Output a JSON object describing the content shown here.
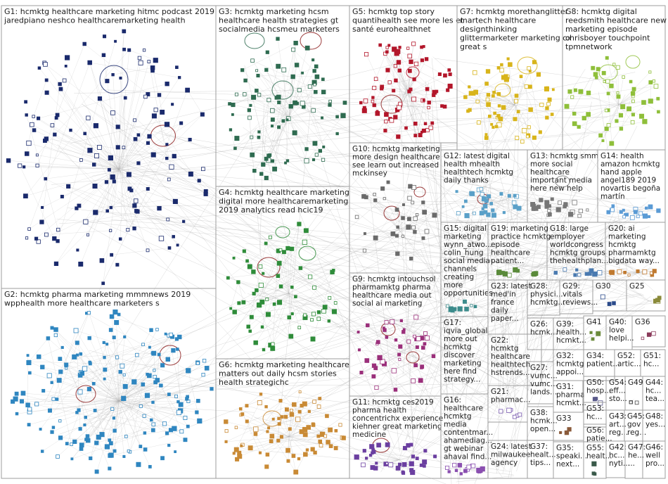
{
  "groups": [
    {
      "id": "G1",
      "lines": [
        "G1: hcmktg healthcare marketing hitmc podcast 2019",
        "jaredpiano neshco healthcaremarketing health"
      ],
      "color": "#1a2a6c"
    },
    {
      "id": "G2",
      "lines": [
        "G2: hcmktg pharma marketing mmmnews 2019",
        "wpphealth more healthcare marketers s"
      ],
      "color": "#2f86c0"
    },
    {
      "id": "G3",
      "lines": [
        "G3: hcmktg marketing hcsm",
        "healthcare health strategies gt",
        "socialmedia hcsmeu marketers"
      ],
      "color": "#2e6b50"
    },
    {
      "id": "G4",
      "lines": [
        "G4: hcmktg healthcare marketing",
        "digital more healthcaremarketing",
        "2019 analytics read hcic19"
      ],
      "color": "#2f8c3a"
    },
    {
      "id": "G5",
      "lines": [
        "G5: hcmktg top story",
        "quantihealth see more les et",
        "santé eurohealthnet"
      ],
      "color": "#b3162a"
    },
    {
      "id": "G6",
      "lines": [
        "G6: hcmktg marketing healthcare",
        "matters out daily hcsm stories",
        "health strategichc"
      ],
      "color": "#c98a35"
    },
    {
      "id": "G7",
      "lines": [
        "G7: hcmktg morethanglitter",
        "martech healthcare",
        "designthinking",
        "glittermarketer marketing cx",
        "great s"
      ],
      "color": "#d8b41a"
    },
    {
      "id": "G8",
      "lines": [
        "G8: hcmktg digital",
        "reedsmith healthcare new",
        "marketing episode",
        "chrisboyer touchpoint",
        "tpmnetwork"
      ],
      "color": "#8fbf3a"
    },
    {
      "id": "G9",
      "lines": [
        "G9: hcmktg intouchsol",
        "pharmamktg pharma",
        "healthcare media out",
        "social ai marketing"
      ],
      "color": "#9a2f7a"
    },
    {
      "id": "G10",
      "lines": [
        "G10: hcmktg marketing",
        "more design healthcare",
        "see learn out increased",
        "mckinsey"
      ],
      "color": "#6a6a6a"
    },
    {
      "id": "G11",
      "lines": [
        "G11: hcmktg ces2019",
        "pharma health",
        "concentrichx experience",
        "kiehner great marketing",
        "medicine"
      ],
      "color": "#6b3fa0"
    },
    {
      "id": "G12",
      "lines": [
        "G12: latest digital",
        "health mhealth",
        "healthtech hcmktg",
        "daily thanks"
      ],
      "color": "#5aa0c8"
    },
    {
      "id": "G13",
      "lines": [
        "G13: hcmktg smm",
        "more social",
        "healthcare",
        "important media",
        "here new help"
      ],
      "color": "#777777"
    },
    {
      "id": "G14",
      "lines": [
        "G14: health",
        "amazon hcmktg",
        "hand apple",
        "angel189 2019",
        "novartis begoña",
        "martín"
      ],
      "color": "#5b9bd5"
    },
    {
      "id": "G15",
      "lines": [
        "G15: digital",
        "marketing",
        "wynn_atwo...",
        "colin_hung",
        "social media",
        "channels",
        "creating",
        "more",
        "opportunities"
      ],
      "color": "#3d8c8c"
    },
    {
      "id": "G16",
      "lines": [
        "G16:",
        "healthcare",
        "hcmktg",
        "media",
        "contentmar...",
        "ahamediag...",
        "gt webinar",
        "ahaval find..."
      ],
      "color": "#8a4fb0"
    },
    {
      "id": "G17",
      "lines": [
        "G17:",
        "iqvia_global",
        "more out",
        "hcmktg",
        "discover",
        "marketing",
        "here find",
        "strategy..."
      ],
      "color": "#c05080"
    },
    {
      "id": "G18",
      "lines": [
        "G18: large",
        "employer",
        "worldcongress",
        "hcmktg groups",
        "thehealthplan..."
      ],
      "color": "#4a7ab0"
    },
    {
      "id": "G19",
      "lines": [
        "G19: marketing",
        "practice hcmktg",
        "episode",
        "healthcare",
        "patient..."
      ],
      "color": "#5a8a3a"
    },
    {
      "id": "G20",
      "lines": [
        "G20: ai",
        "marketing",
        "hcmktg",
        "pharmamktg",
        "bigdata way..."
      ],
      "color": "#c07a30"
    },
    {
      "id": "G21",
      "lines": [
        "G21:",
        "pharmac..."
      ],
      "color": "#7a5ab0"
    },
    {
      "id": "G22",
      "lines": [
        "G22:",
        "hcmktg",
        "healthcare",
        "healthtech",
        "hstrends..."
      ],
      "color": "#3a7ac0"
    },
    {
      "id": "G23",
      "lines": [
        "G23: latest",
        "med'in",
        "france",
        "daily",
        "paper..."
      ],
      "color": "#b04040"
    },
    {
      "id": "G24",
      "lines": [
        "G24: latest",
        "milwaukee",
        "agency"
      ],
      "color": "#4a9a7a"
    },
    {
      "id": "G25",
      "lines": [
        "G25"
      ],
      "color": "#8a8a3a"
    },
    {
      "id": "G26",
      "lines": [
        "G26:",
        "hcmk..."
      ],
      "color": "#3a5ab0"
    },
    {
      "id": "G27",
      "lines": [
        "G27:",
        "vumc...",
        "vumc...",
        "lands..."
      ],
      "color": "#b07a3a"
    },
    {
      "id": "G28",
      "lines": [
        "G28:",
        "physici...",
        "hcmktg..."
      ],
      "color": "#4a8aa0"
    },
    {
      "id": "G29",
      "lines": [
        "G29:",
        "vitals",
        "reviews..."
      ],
      "color": "#a04a8a"
    },
    {
      "id": "G30",
      "lines": [
        "G30"
      ],
      "color": "#2a4a8a"
    },
    {
      "id": "G31",
      "lines": [
        "G31:",
        "pharma",
        "hcmkt..."
      ],
      "color": "#5a7a3a"
    },
    {
      "id": "G32",
      "lines": [
        "G32:",
        "hcmktg",
        "appoi..."
      ],
      "color": "#3a8a5a"
    },
    {
      "id": "G33",
      "lines": [
        "G33"
      ],
      "color": "#8a5a3a"
    },
    {
      "id": "G34",
      "lines": [
        "G34:",
        "patient..."
      ],
      "color": "#6a3a8a"
    },
    {
      "id": "G35",
      "lines": [
        "G35:",
        "speaki...",
        "next..."
      ],
      "color": "#3a6a8a"
    },
    {
      "id": "G36",
      "lines": [
        "G36"
      ],
      "color": "#8a3a5a"
    },
    {
      "id": "G37",
      "lines": [
        "G37:",
        "healt...",
        "tips..."
      ],
      "color": "#5a8a8a"
    },
    {
      "id": "G38",
      "lines": [
        "G38:",
        "hcmk...",
        "open..."
      ],
      "color": "#3a3a8a"
    },
    {
      "id": "G39",
      "lines": [
        "G39:",
        "health...",
        "hcmkt..."
      ],
      "color": "#8a6a3a"
    },
    {
      "id": "G40",
      "lines": [
        "G40:",
        "love",
        "helpi..."
      ],
      "color": "#3a8a8a"
    },
    {
      "id": "G41",
      "lines": [
        "G41"
      ],
      "color": "#6a8a3a"
    },
    {
      "id": "G42",
      "lines": [
        "G42:",
        "hc...",
        "nyti..."
      ],
      "color": "#8a3a3a"
    },
    {
      "id": "G43",
      "lines": [
        "G43:",
        "art...",
        "reg..."
      ],
      "color": "#3a5a6a"
    },
    {
      "id": "G44",
      "lines": [
        "G44:",
        "hc...",
        "tea..."
      ],
      "color": "#6a6a3a"
    },
    {
      "id": "G45",
      "lines": [
        "G45:",
        "gov",
        "reg..."
      ],
      "color": "#3a6a3a"
    },
    {
      "id": "G46",
      "lines": [
        "G46:",
        "well",
        "pro..."
      ],
      "color": "#5a3a6a"
    },
    {
      "id": "G47",
      "lines": [
        "G47:",
        "he...",
        "..."
      ],
      "color": "#6a3a3a"
    },
    {
      "id": "G48",
      "lines": [
        "G48:",
        "yes..."
      ],
      "color": "#3a3a6a"
    },
    {
      "id": "G49",
      "lines": [
        "G49"
      ],
      "color": "#4a4a4a"
    },
    {
      "id": "G50",
      "lines": [
        "G50:",
        "hosp..."
      ],
      "color": "#5a5a8a"
    },
    {
      "id": "G51",
      "lines": [
        "G51:",
        "hc..."
      ],
      "color": "#8a5a5a"
    },
    {
      "id": "G52",
      "lines": [
        "G52:",
        "artic..."
      ],
      "color": "#5a8a5a"
    },
    {
      "id": "G53",
      "lines": [
        "G53:",
        "hc..."
      ],
      "color": "#3a4a5a"
    },
    {
      "id": "G54",
      "lines": [
        "G54:",
        "eff...",
        "sto..."
      ],
      "color": "#6a5a3a"
    },
    {
      "id": "G55",
      "lines": [
        "G55:",
        "healt..."
      ],
      "color": "#3a5a4a"
    },
    {
      "id": "G56",
      "lines": [
        "G56:",
        "patie..."
      ],
      "color": "#5a3a4a"
    }
  ]
}
